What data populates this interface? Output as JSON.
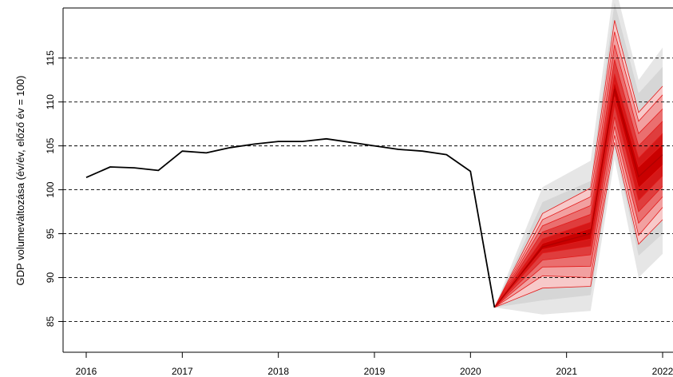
{
  "chart_data": {
    "type": "line",
    "ylabel": "GDP volumeváltozása (év/év, előző év = 100)",
    "xlabel": "",
    "xlim": [
      2016,
      2022
    ],
    "ylim": [
      81.5,
      120.7
    ],
    "grid": "horizontal dashed",
    "x_ticks": [
      {
        "value": 2016,
        "label": "2016"
      },
      {
        "value": 2017,
        "label": "2017"
      },
      {
        "value": 2018,
        "label": "2018"
      },
      {
        "value": 2019,
        "label": "2019"
      },
      {
        "value": 2020,
        "label": "2020"
      },
      {
        "value": 2021,
        "label": "2021"
      },
      {
        "value": 2022,
        "label": "2022"
      }
    ],
    "y_ticks": [
      {
        "value": 85,
        "label": "85"
      },
      {
        "value": 90,
        "label": "90"
      },
      {
        "value": 95,
        "label": "95"
      },
      {
        "value": 100,
        "label": "100"
      },
      {
        "value": 105,
        "label": "105"
      },
      {
        "value": 110,
        "label": "110"
      },
      {
        "value": 115,
        "label": "115"
      }
    ],
    "history": {
      "x": [
        2016.0,
        2016.25,
        2016.5,
        2016.75,
        2017.0,
        2017.25,
        2017.5,
        2017.75,
        2018.0,
        2018.25,
        2018.5,
        2018.75,
        2019.0,
        2019.25,
        2019.5,
        2019.75,
        2020.0,
        2020.25
      ],
      "y": [
        101.4,
        102.6,
        102.5,
        102.2,
        104.4,
        104.2,
        104.8,
        105.2,
        105.5,
        105.5,
        105.8,
        105.4,
        105.0,
        104.6,
        104.4,
        104.0,
        102.1,
        86.6
      ],
      "color": "#000000"
    },
    "fan": {
      "x": [
        2020.25,
        2020.75,
        2021.25,
        2021.5,
        2021.75,
        2022.0
      ],
      "median": [
        86.6,
        93.5,
        95.0,
        111.5,
        101.5,
        104.0
      ],
      "bands": [
        {
          "lower": [
            86.6,
            85.8,
            86.2,
            103.5,
            90.0,
            92.7
          ],
          "upper": [
            86.6,
            100.3,
            103.3,
            123.5,
            112.5,
            116.2
          ],
          "color": "#e6e6e6"
        },
        {
          "lower": [
            86.6,
            87.4,
            88.0,
            104.8,
            92.5,
            95.0
          ],
          "upper": [
            86.6,
            98.6,
            101.0,
            121.3,
            111.0,
            114.0
          ],
          "color": "#d6d6d6"
        },
        {
          "lower": [
            86.6,
            88.8,
            89.0,
            105.4,
            93.8,
            96.6
          ],
          "upper": [
            86.6,
            97.3,
            100.2,
            119.3,
            108.8,
            111.8
          ],
          "color": "#f7c9c9"
        },
        {
          "lower": [
            86.6,
            90.2,
            90.0,
            106.2,
            94.8,
            98.0
          ],
          "upper": [
            86.6,
            96.6,
            99.2,
            118.0,
            107.8,
            110.8
          ],
          "color": "#f2a0a0"
        },
        {
          "lower": [
            86.6,
            91.2,
            91.3,
            107.2,
            96.2,
            99.2
          ],
          "upper": [
            86.6,
            95.9,
            98.2,
            116.5,
            106.4,
            109.2
          ],
          "color": "#ea6f6f"
        },
        {
          "lower": [
            86.6,
            92.0,
            92.6,
            108.3,
            97.5,
            100.4
          ],
          "upper": [
            86.6,
            95.2,
            97.2,
            114.8,
            105.0,
            107.8
          ],
          "color": "#df3d3d"
        },
        {
          "lower": [
            86.6,
            92.8,
            93.6,
            109.6,
            98.8,
            101.6
          ],
          "upper": [
            86.6,
            94.4,
            96.3,
            113.2,
            103.6,
            106.4
          ],
          "color": "#d41818"
        },
        {
          "lower": [
            86.6,
            93.2,
            94.4,
            110.6,
            100.2,
            102.8
          ],
          "upper": [
            86.6,
            93.9,
            95.6,
            112.3,
            102.6,
            105.2
          ],
          "color": "#c90000"
        }
      ]
    }
  }
}
